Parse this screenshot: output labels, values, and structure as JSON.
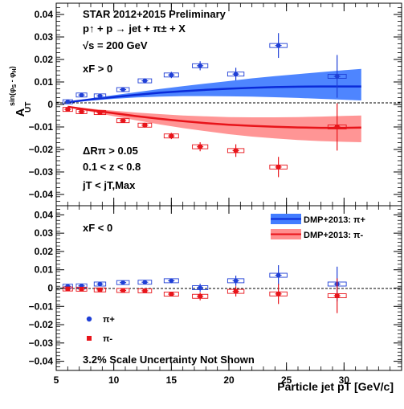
{
  "chart_data": [
    {
      "type": "scatter",
      "panel": "top",
      "annotations": [
        "STAR 2012+2015 Preliminary",
        "p↑ + p → jet + π± + X",
        "√s = 200 GeV",
        "xF > 0",
        "ΔRπ > 0.05",
        "0.1 < z < 0.8",
        "jT < jT,Max"
      ],
      "ylabel": "A_UT^sin(φS - φH)",
      "ylim": [
        -0.045,
        0.045
      ],
      "yticks": [
        "−0.04",
        "−0.03",
        "−0.02",
        "−0.01",
        "0",
        "0.01",
        "0.02",
        "0.03",
        "0.04"
      ],
      "series": [
        {
          "name": "π+",
          "color": "#1f3fd6",
          "x": [
            6.0,
            7.2,
            8.8,
            10.8,
            12.7,
            15.0,
            17.5,
            20.6,
            24.3,
            29.4
          ],
          "y": [
            0.0012,
            0.0042,
            0.0038,
            0.0066,
            0.0105,
            0.0131,
            0.0172,
            0.0135,
            0.0262,
            0.0125
          ],
          "yerr": [
            0.0007,
            0.001,
            0.0009,
            0.001,
            0.0011,
            0.0014,
            0.002,
            0.0028,
            0.0055,
            0.0095
          ]
        },
        {
          "name": "π-",
          "color": "#e8141a",
          "x": [
            6.0,
            7.2,
            8.8,
            10.8,
            12.7,
            15.0,
            17.5,
            20.6,
            24.3,
            29.4
          ],
          "y": [
            -0.0022,
            -0.0032,
            -0.0036,
            -0.0072,
            -0.0092,
            -0.014,
            -0.0188,
            -0.0205,
            -0.0278,
            -0.01
          ],
          "yerr": [
            0.0007,
            0.001,
            0.0009,
            0.001,
            0.0011,
            0.0014,
            0.002,
            0.0028,
            0.0045,
            0.0105
          ]
        }
      ],
      "bands": [
        {
          "name": "DMP+2013: π+",
          "color": "#2266ff",
          "x": [
            6,
            8,
            10,
            12,
            14,
            16,
            18,
            20,
            22,
            24,
            26,
            28,
            30,
            31.5
          ],
          "y": [
            0.001,
            0.0022,
            0.0033,
            0.0043,
            0.0052,
            0.0059,
            0.0065,
            0.007,
            0.0074,
            0.0077,
            0.0079,
            0.008,
            0.008,
            0.008
          ],
          "low": [
            0.0008,
            0.0017,
            0.0025,
            0.0031,
            0.0035,
            0.0037,
            0.0037,
            0.0036,
            0.0035,
            0.0032,
            0.0029,
            0.0025,
            0.0021,
            0.0018
          ],
          "high": [
            0.0012,
            0.0027,
            0.0041,
            0.0055,
            0.0069,
            0.0081,
            0.0093,
            0.0104,
            0.0116,
            0.0126,
            0.0135,
            0.0144,
            0.0152,
            0.0158
          ]
        },
        {
          "name": "DMP+2013: π-",
          "color": "#ff7a7a",
          "x": [
            6,
            8,
            10,
            12,
            14,
            16,
            18,
            20,
            22,
            24,
            26,
            28,
            30,
            31.5
          ],
          "y": [
            -0.001,
            -0.0025,
            -0.0039,
            -0.0052,
            -0.0064,
            -0.0074,
            -0.0083,
            -0.009,
            -0.0095,
            -0.0099,
            -0.0102,
            -0.0104,
            -0.0104,
            -0.0103
          ],
          "low": [
            -0.0012,
            -0.0032,
            -0.0052,
            -0.0071,
            -0.0089,
            -0.0105,
            -0.0119,
            -0.0132,
            -0.0143,
            -0.0151,
            -0.0158,
            -0.0163,
            -0.0166,
            -0.0168
          ],
          "high": [
            -0.0008,
            -0.0019,
            -0.0028,
            -0.0036,
            -0.0043,
            -0.0049,
            -0.0053,
            -0.0056,
            -0.0057,
            -0.0057,
            -0.0056,
            -0.0054,
            -0.0051,
            -0.0049
          ]
        }
      ]
    },
    {
      "type": "scatter",
      "panel": "bottom",
      "annotations": [
        "xF < 0",
        "3.2% Scale Uncertainty Not Shown"
      ],
      "xlabel": "Particle jet pT [GeV/c]",
      "xlim": [
        5,
        35
      ],
      "xticks": [
        "5",
        "10",
        "15",
        "20",
        "25",
        "30"
      ],
      "ylim": [
        -0.045,
        0.045
      ],
      "yticks": [
        "−0.04",
        "−0.03",
        "−0.02",
        "−0.01",
        "0",
        "0.01",
        "0.02",
        "0.03",
        "0.04"
      ],
      "legend_position": "top-right",
      "marker_legend_position": "bottom-left",
      "series": [
        {
          "name": "π+",
          "color": "#1f3fd6",
          "x": [
            6.0,
            7.2,
            8.8,
            10.8,
            12.7,
            15.0,
            17.5,
            20.6,
            24.3,
            29.4
          ],
          "y": [
            0.001,
            0.0012,
            0.0022,
            0.003,
            0.0032,
            0.004,
            0.0002,
            0.004,
            0.007,
            0.0022
          ],
          "yerr": [
            0.0007,
            0.001,
            0.0009,
            0.001,
            0.0011,
            0.0013,
            0.0022,
            0.0028,
            0.0055,
            0.0095
          ]
        },
        {
          "name": "π-",
          "color": "#e8141a",
          "x": [
            6.0,
            7.2,
            8.8,
            10.8,
            12.7,
            15.0,
            17.5,
            20.6,
            24.3,
            29.4
          ],
          "y": [
            -0.0005,
            -0.0006,
            -0.001,
            -0.0013,
            -0.0015,
            -0.0033,
            -0.0045,
            -0.0018,
            -0.0032,
            -0.0042
          ],
          "yerr": [
            0.0007,
            0.001,
            0.0009,
            0.001,
            0.0011,
            0.0013,
            0.0022,
            0.0028,
            0.0055,
            0.0095
          ]
        }
      ],
      "legend": [
        {
          "label": "DMP+2013: π+",
          "color": "#2266ff"
        },
        {
          "label": "DMP+2013: π-",
          "color": "#ff7a7a"
        }
      ],
      "marker_legend": [
        {
          "label": "π+",
          "color": "#1f3fd6",
          "marker": "circle"
        },
        {
          "label": "π-",
          "color": "#e8141a",
          "marker": "square"
        }
      ]
    }
  ]
}
